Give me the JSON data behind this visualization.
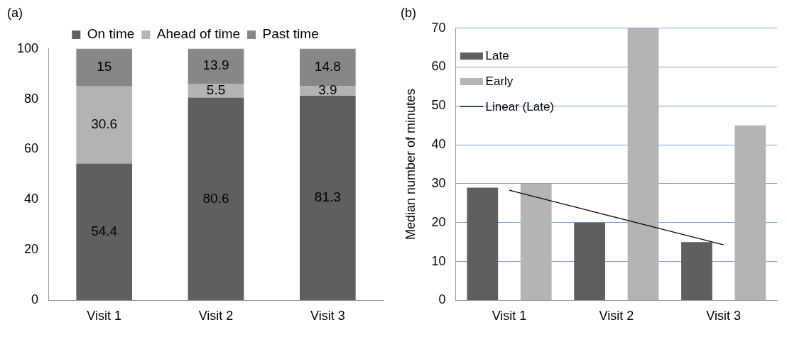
{
  "chart_data": [
    {
      "type": "bar",
      "title": "(a)",
      "categories": [
        "Visit 1",
        "Visit 2",
        "Visit 3"
      ],
      "stacked": true,
      "data_labels": true,
      "legend": "top",
      "grid": false,
      "series": [
        {
          "name": "On time",
          "color": "#5f5f5f",
          "values": [
            54.4,
            80.6,
            81.3
          ]
        },
        {
          "name": "Ahead of time",
          "color": "#b4b4b4",
          "values": [
            30.6,
            5.5,
            3.9
          ]
        },
        {
          "name": "Past time",
          "color": "#878787",
          "values": [
            15,
            13.9,
            14.8
          ]
        }
      ],
      "ylim": [
        0,
        100
      ],
      "yticks": [
        0,
        20,
        40,
        60,
        80,
        100
      ]
    },
    {
      "type": "bar",
      "title": "(b)",
      "categories": [
        "Visit 1",
        "Visit 2",
        "Visit 3"
      ],
      "ylabel": "Median number of minutes",
      "legend": "top left",
      "grid": "y",
      "series": [
        {
          "name": "Late",
          "color": "#5f5f5f",
          "values": [
            29,
            20,
            15
          ]
        },
        {
          "name": "Early",
          "color": "#b4b4b4",
          "values": [
            30,
            70,
            45
          ]
        },
        {
          "name": "Linear (Late)",
          "type": "line",
          "color": "#000000",
          "x": [
            "Visit 1",
            "Visit 2",
            "Visit 3"
          ],
          "values": [
            28.3,
            21.3,
            14.3
          ]
        }
      ],
      "ylim": [
        0,
        70
      ],
      "yticks": [
        0,
        10,
        20,
        30,
        40,
        50,
        60,
        70
      ]
    }
  ]
}
